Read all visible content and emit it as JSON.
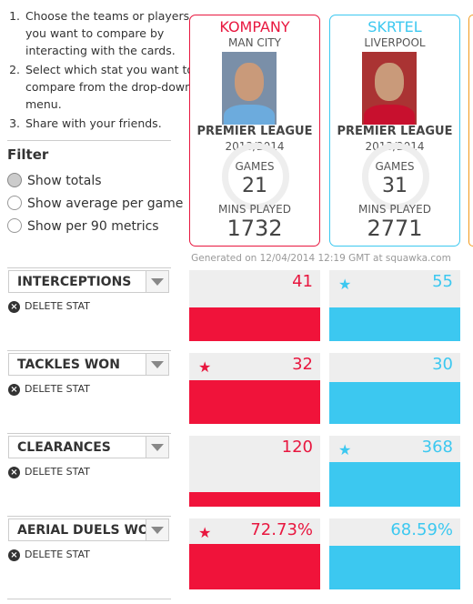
{
  "instructions": [
    "Choose the teams or players you want to compare by interacting with the cards.",
    "Select which stat you want to compare from the drop-down menu.",
    "Share with your friends."
  ],
  "filter": {
    "title": "Filter",
    "options": [
      "Show totals",
      "Show average per game",
      "Show per 90 metrics"
    ]
  },
  "players": [
    {
      "name": "KOMPANY",
      "club": "MAN CITY",
      "league": "PREMIER LEAGUE",
      "season": "2013/2014",
      "games_label": "GAMES",
      "games": 21,
      "mins_label": "MINS PLAYED",
      "mins": 1732
    },
    {
      "name": "SKRTEL",
      "club": "LIVERPOOL",
      "league": "PREMIER LEAGUE",
      "season": "2013/2014",
      "games_label": "GAMES",
      "games": 31,
      "mins_label": "MINS PLAYED",
      "mins": 2771
    }
  ],
  "generated": "Generated on 12/04/2014 12:19 GMT at squawka.com",
  "stats": [
    {
      "name": "INTERCEPTIONS",
      "delete": "DELETE STAT",
      "values": [
        41,
        55
      ]
    },
    {
      "name": "TACKLES WON",
      "delete": "DELETE STAT",
      "values": [
        32,
        30
      ]
    },
    {
      "name": "CLEARANCES",
      "delete": "DELETE STAT",
      "values": [
        120,
        368
      ]
    },
    {
      "name": "AERIAL DUELS WO",
      "delete": "DELETE STAT",
      "values": [
        "72.73%",
        "68.59%"
      ]
    }
  ]
}
